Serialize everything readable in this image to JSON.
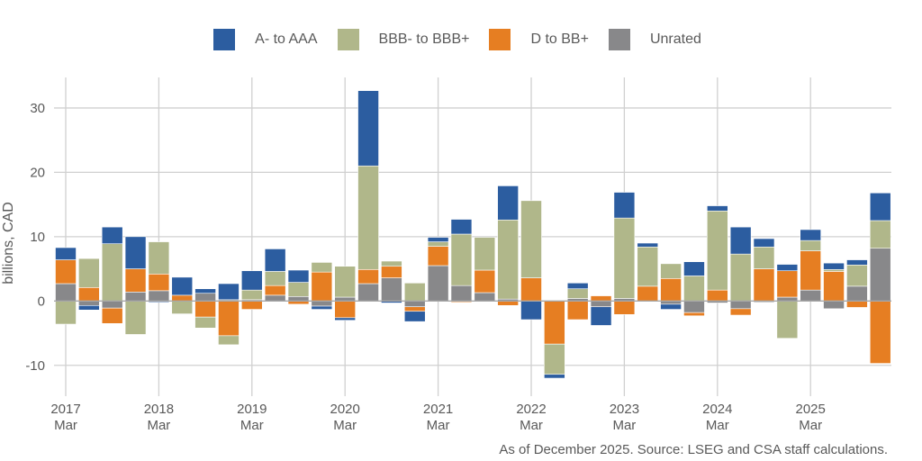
{
  "chart_data": {
    "type": "bar",
    "stacked": true,
    "title": "",
    "xlabel": "",
    "ylabel": "billions, CAD",
    "ylim": [
      -14,
      35
    ],
    "yticks": [
      -10,
      0,
      10,
      20,
      30
    ],
    "grid": true,
    "legend_position": "top-center",
    "x_tick_labels": [
      {
        "year": "2017",
        "month": "Mar",
        "index": 0
      },
      {
        "year": "2018",
        "month": "Mar",
        "index": 4
      },
      {
        "year": "2019",
        "month": "Mar",
        "index": 8
      },
      {
        "year": "2020",
        "month": "Mar",
        "index": 12
      },
      {
        "year": "2021",
        "month": "Mar",
        "index": 16
      },
      {
        "year": "2022",
        "month": "Mar",
        "index": 20
      },
      {
        "year": "2023",
        "month": "Mar",
        "index": 24
      },
      {
        "year": "2024",
        "month": "Mar",
        "index": 28
      },
      {
        "year": "2025",
        "month": "Mar",
        "index": 32
      }
    ],
    "categories": [
      "2017 Mar",
      "2017 Jun",
      "2017 Sep",
      "2017 Dec",
      "2018 Mar",
      "2018 Jun",
      "2018 Sep",
      "2018 Dec",
      "2019 Mar",
      "2019 Jun",
      "2019 Sep",
      "2019 Dec",
      "2020 Mar",
      "2020 Jun",
      "2020 Sep",
      "2020 Dec",
      "2021 Mar",
      "2021 Jun",
      "2021 Sep",
      "2021 Dec",
      "2022 Mar",
      "2022 Jun",
      "2022 Sep",
      "2022 Dec",
      "2023 Mar",
      "2023 Jun",
      "2023 Sep",
      "2023 Dec",
      "2024 Mar",
      "2024 Jun",
      "2024 Sep",
      "2024 Dec",
      "2025 Mar",
      "2025 Jun",
      "2025 Sep",
      "2025 Dec"
    ],
    "series": [
      {
        "name": "Unrated",
        "color": "#88888a",
        "values": [
          2.7,
          -0.7,
          -1.1,
          1.4,
          1.6,
          0.0,
          1.2,
          0.2,
          0.2,
          0.9,
          0.7,
          -0.8,
          0.6,
          2.7,
          3.6,
          -0.9,
          5.5,
          2.4,
          1.3,
          0.3,
          0.0,
          0.0,
          0.4,
          -0.9,
          0.4,
          0.0,
          -0.5,
          -1.8,
          -0.3,
          -1.2,
          -0.2,
          0.6,
          1.7,
          -1.2,
          2.3,
          8.2
        ]
      },
      {
        "name": "D to BB+",
        "color": "#e67e22",
        "values": [
          3.7,
          2.1,
          -2.4,
          3.6,
          2.6,
          0.9,
          -2.5,
          -5.4,
          -1.3,
          1.5,
          -0.5,
          4.5,
          -2.6,
          2.2,
          1.8,
          -0.7,
          3.0,
          -0.2,
          3.5,
          -0.7,
          3.6,
          -6.7,
          -2.9,
          0.8,
          -2.1,
          2.3,
          3.5,
          -0.5,
          1.7,
          -1.0,
          5.0,
          4.1,
          6.1,
          4.6,
          -1.0,
          -9.7
        ]
      },
      {
        "name": "BBB- to BBB+",
        "color": "#b0b78a",
        "values": [
          -3.6,
          4.5,
          8.9,
          -5.2,
          5.0,
          -2.0,
          -1.7,
          -1.4,
          1.5,
          2.2,
          2.2,
          1.5,
          4.8,
          16.1,
          0.8,
          2.8,
          0.7,
          8.0,
          5.1,
          12.3,
          12.0,
          -4.7,
          1.5,
          0.0,
          12.5,
          6.1,
          2.3,
          3.9,
          12.3,
          7.3,
          3.4,
          -5.8,
          1.6,
          0.3,
          3.3,
          4.3
        ]
      },
      {
        "name": "A- to AAA",
        "color": "#2c5da0",
        "values": [
          1.9,
          -0.7,
          2.6,
          5.0,
          -0.2,
          2.8,
          0.7,
          2.5,
          3.0,
          3.5,
          1.9,
          -0.5,
          -0.4,
          11.7,
          -0.3,
          -1.6,
          0.7,
          2.3,
          0.0,
          5.3,
          -2.9,
          -0.6,
          0.9,
          -2.9,
          4.0,
          0.6,
          -0.8,
          2.2,
          0.8,
          4.2,
          1.3,
          1.0,
          1.7,
          1.0,
          0.8,
          4.3
        ]
      }
    ]
  },
  "legend": {
    "items": [
      {
        "label": "A- to AAA",
        "color": "#2c5da0"
      },
      {
        "label": "BBB- to BBB+",
        "color": "#b0b78a"
      },
      {
        "label": "D to BB+",
        "color": "#e67e22"
      },
      {
        "label": "Unrated",
        "color": "#88888a"
      }
    ]
  },
  "footer": {
    "note": "As of December 2025. Source: LSEG and CSA staff calculations."
  }
}
